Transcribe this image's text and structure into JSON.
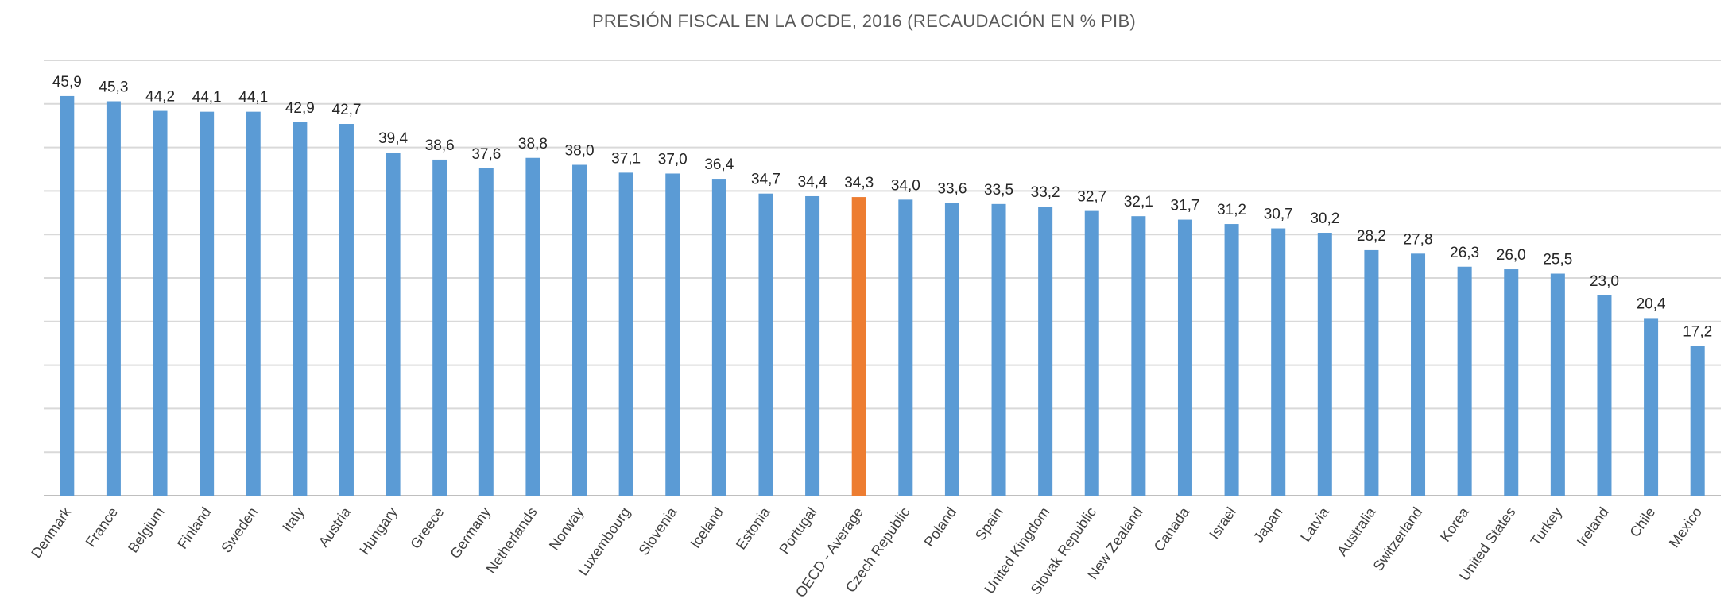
{
  "chart_data": {
    "type": "bar",
    "title": "PRESIÓN FISCAL EN LA OCDE, 2016 (RECAUDACIÓN EN % PIB)",
    "xlabel": "",
    "ylabel": "",
    "ylim": [
      0,
      50
    ],
    "grid": true,
    "grid_step": 5,
    "y_axis_labels_shown": false,
    "categories": [
      "Denmark",
      "France",
      "Belgium",
      "Finland",
      "Sweden",
      "Italy",
      "Austria",
      "Hungary",
      "Greece",
      "Germany",
      "Netherlands",
      "Norway",
      "Luxembourg",
      "Slovenia",
      "Iceland",
      "Estonia",
      "Portugal",
      "OECD - Average",
      "Czech Republic",
      "Poland",
      "Spain",
      "United Kingdom",
      "Slovak Republic",
      "New Zealand",
      "Canada",
      "Israel",
      "Japan",
      "Latvia",
      "Australia",
      "Switzerland",
      "Korea",
      "United States",
      "Turkey",
      "Ireland",
      "Chile",
      "Mexico"
    ],
    "values": [
      45.9,
      45.3,
      44.2,
      44.1,
      44.1,
      42.9,
      42.7,
      39.4,
      38.6,
      37.6,
      38.8,
      38.0,
      37.1,
      37.0,
      36.4,
      34.7,
      34.4,
      34.3,
      34.0,
      33.6,
      33.5,
      33.2,
      32.7,
      32.1,
      31.7,
      31.2,
      30.7,
      30.2,
      28.2,
      27.8,
      26.3,
      26.0,
      25.5,
      23.0,
      20.4,
      17.2
    ],
    "data_labels": [
      "45,9",
      "45,3",
      "44,2",
      "44,1",
      "44,1",
      "42,9",
      "42,7",
      "39,4",
      "38,6",
      "37,6",
      "38,8",
      "38,0",
      "37,1",
      "37,0",
      "36,4",
      "34,7",
      "34,4",
      "34,3",
      "34,0",
      "33,6",
      "33,5",
      "33,2",
      "32,7",
      "32,1",
      "31,7",
      "31,2",
      "30,7",
      "30,2",
      "28,2",
      "27,8",
      "26,3",
      "26,0",
      "25,5",
      "23,0",
      "20,4",
      "17,2"
    ],
    "highlight_category": "OECD - Average",
    "colors": {
      "bar": "#5B9BD5",
      "highlight": "#ED7D31",
      "grid": "#D9D9D9"
    }
  }
}
